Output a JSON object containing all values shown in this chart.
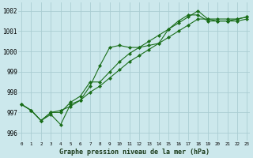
{
  "background_color": "#cce8ec",
  "grid_color": "#aacdd2",
  "line_color": "#1a6e1a",
  "marker_color": "#1a6e1a",
  "title": "Graphe pression niveau de la mer (hPa)",
  "ylabel_values": [
    996,
    997,
    998,
    999,
    1000,
    1001,
    1002
  ],
  "xlabel_values": [
    0,
    1,
    2,
    3,
    4,
    5,
    6,
    7,
    8,
    9,
    10,
    11,
    12,
    13,
    14,
    15,
    16,
    17,
    18,
    19,
    20,
    21,
    22,
    23
  ],
  "xlim": [
    -0.3,
    23.3
  ],
  "ylim": [
    995.6,
    1002.4
  ],
  "series1": [
    997.4,
    997.1,
    996.6,
    996.9,
    996.4,
    997.4,
    997.6,
    998.3,
    999.3,
    1000.2,
    1000.3,
    1000.2,
    1000.2,
    1000.3,
    1000.4,
    1001.1,
    1001.5,
    1001.8,
    1001.8,
    1001.5,
    1001.5,
    1001.5,
    1001.5,
    1001.6
  ],
  "series2": [
    997.4,
    997.1,
    996.6,
    997.0,
    997.0,
    997.5,
    997.8,
    998.5,
    998.5,
    999.0,
    999.5,
    999.9,
    1000.2,
    1000.5,
    1000.8,
    1001.1,
    1001.4,
    1001.7,
    1002.0,
    1001.6,
    1001.6,
    1001.6,
    1001.6,
    1001.7
  ],
  "series3": [
    997.4,
    997.1,
    996.6,
    997.0,
    997.1,
    997.3,
    997.6,
    998.0,
    998.3,
    998.7,
    999.1,
    999.5,
    999.8,
    1000.1,
    1000.4,
    1000.7,
    1001.0,
    1001.3,
    1001.6,
    1001.6,
    1001.5,
    1001.5,
    1001.6,
    1001.7
  ]
}
